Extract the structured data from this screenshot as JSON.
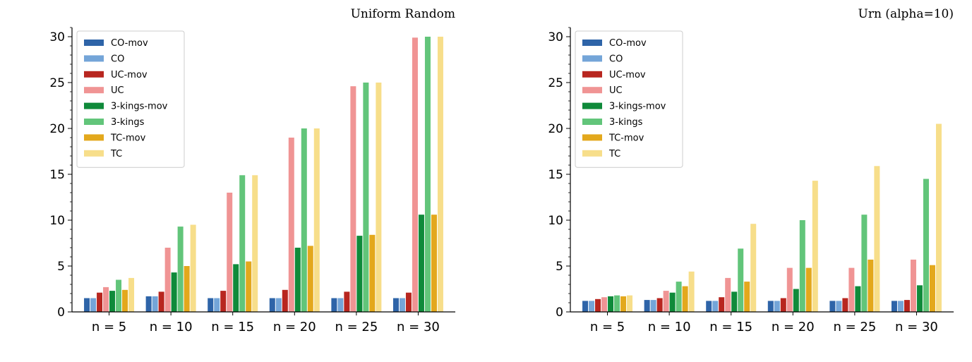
{
  "chart_data": [
    {
      "type": "bar",
      "title": "Uniform Random",
      "categories": [
        "n = 5",
        "n = 10",
        "n = 15",
        "n = 20",
        "n = 25",
        "n = 30"
      ],
      "ylim": [
        0,
        31
      ],
      "yticks": [
        0,
        5,
        10,
        15,
        20,
        25,
        30
      ],
      "legend": "top-left",
      "grid": false,
      "series": [
        {
          "name": "CO-mov",
          "color": "#2e64a8",
          "values": [
            1.5,
            1.7,
            1.5,
            1.5,
            1.5,
            1.5
          ]
        },
        {
          "name": "CO",
          "color": "#74a5d8",
          "values": [
            1.5,
            1.7,
            1.5,
            1.5,
            1.5,
            1.5
          ]
        },
        {
          "name": "UC-mov",
          "color": "#b8261f",
          "values": [
            2.1,
            2.2,
            2.3,
            2.4,
            2.2,
            2.1
          ]
        },
        {
          "name": "UC",
          "color": "#f09494",
          "values": [
            2.7,
            7.0,
            13.0,
            19.0,
            24.6,
            29.9
          ]
        },
        {
          "name": "3-kings-mov",
          "color": "#0f8a3a",
          "values": [
            2.3,
            4.3,
            5.2,
            7.0,
            8.3,
            10.6
          ]
        },
        {
          "name": "3-kings",
          "color": "#62c57a",
          "values": [
            3.5,
            9.3,
            14.9,
            20.0,
            25.0,
            30.0
          ]
        },
        {
          "name": "TC-mov",
          "color": "#e3a81c",
          "values": [
            2.4,
            5.0,
            5.5,
            7.2,
            8.4,
            10.6
          ]
        },
        {
          "name": "TC",
          "color": "#f7de8a",
          "values": [
            3.7,
            9.5,
            14.9,
            20.0,
            25.0,
            30.0
          ]
        }
      ]
    },
    {
      "type": "bar",
      "title": "Urn (alpha=10)",
      "categories": [
        "n = 5",
        "n = 10",
        "n = 15",
        "n = 20",
        "n = 25",
        "n = 30"
      ],
      "ylim": [
        0,
        31
      ],
      "yticks": [
        0,
        5,
        10,
        15,
        20,
        25,
        30
      ],
      "legend": "top-left",
      "grid": false,
      "series": [
        {
          "name": "CO-mov",
          "color": "#2e64a8",
          "values": [
            1.2,
            1.3,
            1.2,
            1.2,
            1.2,
            1.2
          ]
        },
        {
          "name": "CO",
          "color": "#74a5d8",
          "values": [
            1.2,
            1.3,
            1.2,
            1.2,
            1.2,
            1.2
          ]
        },
        {
          "name": "UC-mov",
          "color": "#b8261f",
          "values": [
            1.4,
            1.5,
            1.6,
            1.5,
            1.5,
            1.3
          ]
        },
        {
          "name": "UC",
          "color": "#f09494",
          "values": [
            1.6,
            2.3,
            3.7,
            4.8,
            4.8,
            5.7
          ]
        },
        {
          "name": "3-kings-mov",
          "color": "#0f8a3a",
          "values": [
            1.7,
            2.1,
            2.2,
            2.5,
            2.8,
            2.9
          ]
        },
        {
          "name": "3-kings",
          "color": "#62c57a",
          "values": [
            1.8,
            3.3,
            6.9,
            10.0,
            10.6,
            14.5
          ]
        },
        {
          "name": "TC-mov",
          "color": "#e3a81c",
          "values": [
            1.7,
            2.8,
            3.3,
            4.8,
            5.7,
            5.1
          ]
        },
        {
          "name": "TC",
          "color": "#f7de8a",
          "values": [
            1.8,
            4.4,
            9.6,
            14.3,
            15.9,
            20.5
          ]
        }
      ]
    }
  ]
}
